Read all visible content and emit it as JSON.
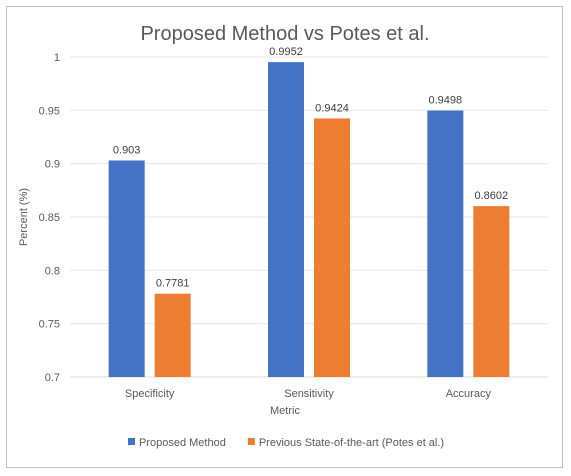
{
  "chart_data": {
    "type": "bar",
    "title": "Proposed Method vs Potes et al.",
    "xlabel": "Metric",
    "ylabel": "Percent (%)",
    "categories": [
      "Specificity",
      "Sensitivity",
      "Accuracy"
    ],
    "series": [
      {
        "name": "Proposed Method",
        "values": [
          0.903,
          0.9952,
          0.9498
        ],
        "labels": [
          "0.903",
          "0.9952",
          "0.9498"
        ],
        "color": "#4472c4"
      },
      {
        "name": "Previous State-of-the-art (Potes et al.)",
        "values": [
          0.7781,
          0.9424,
          0.8602
        ],
        "labels": [
          "0.7781",
          "0.9424",
          "0.8602"
        ],
        "color": "#ed7d31"
      }
    ],
    "ylim": [
      0.7,
      1.0
    ],
    "yticks": [
      0.7,
      0.75,
      0.8,
      0.85,
      0.9,
      0.95,
      1.0
    ],
    "ytick_labels": [
      "0.7",
      "0.75",
      "0.8",
      "0.85",
      "0.9",
      "0.95",
      "1"
    ],
    "grid": true,
    "legend_position": "bottom"
  }
}
